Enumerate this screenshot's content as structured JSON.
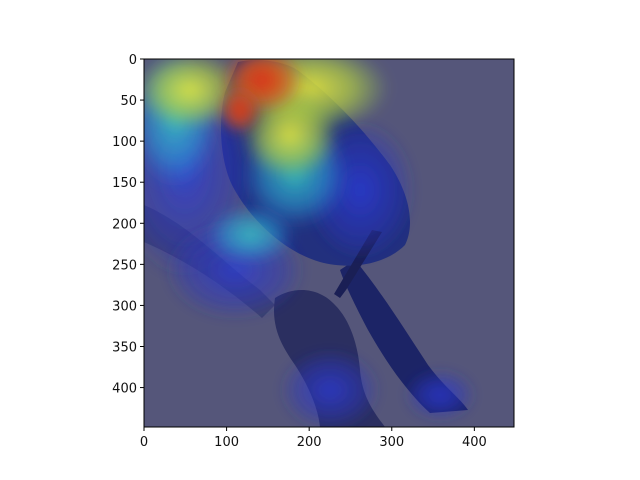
{
  "image": {
    "subject": "bird-on-branch",
    "overlay": "attention-heatmap",
    "colormap": "jet",
    "colors": {
      "background": "#55567a",
      "bird_body": "#1e2a78",
      "branch": "#3a3f6e",
      "heat_red": "#d2221a",
      "heat_yellow": "#e6e23a",
      "heat_cyan": "#2fc7c9",
      "heat_blue": "#2a3ad0"
    }
  },
  "axes": {
    "xlim": [
      0,
      448
    ],
    "ylim": [
      448,
      0
    ],
    "x_ticks": [
      "0",
      "100",
      "200",
      "300",
      "400"
    ],
    "y_ticks": [
      "0",
      "50",
      "100",
      "150",
      "200",
      "250",
      "300",
      "350",
      "400"
    ],
    "grid": false
  }
}
